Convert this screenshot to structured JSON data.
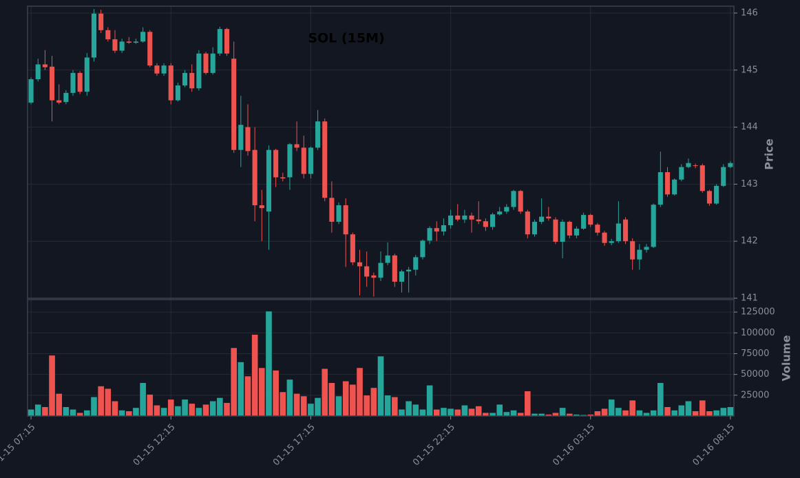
{
  "chart_data": [
    {
      "type": "candlestick",
      "title": "SOL (15M)",
      "y_label": "Price",
      "categories": [
        "01-15 07:15",
        null,
        null,
        null,
        null,
        null,
        null,
        null,
        null,
        null,
        null,
        null,
        null,
        null,
        null,
        null,
        null,
        null,
        null,
        null,
        "01-15 12:15",
        null,
        null,
        null,
        null,
        null,
        null,
        null,
        null,
        null,
        null,
        null,
        null,
        null,
        null,
        null,
        null,
        null,
        null,
        null,
        "01-15 17:15",
        null,
        null,
        null,
        null,
        null,
        null,
        null,
        null,
        null,
        null,
        null,
        null,
        null,
        null,
        null,
        null,
        null,
        null,
        null,
        "01-15 22:15",
        null,
        null,
        null,
        null,
        null,
        null,
        null,
        null,
        null,
        null,
        null,
        null,
        null,
        null,
        null,
        null,
        null,
        null,
        null,
        "01-16 03:15",
        null,
        null,
        null,
        null,
        null,
        null,
        null,
        null,
        null,
        null,
        null,
        null,
        null,
        null,
        null,
        null,
        null,
        null,
        null,
        "01-16 08:15"
      ],
      "open": [
        144.43,
        144.84,
        145.1,
        145.06,
        144.47,
        144.44,
        144.6,
        144.95,
        144.62,
        145.22,
        145.99,
        145.7,
        145.54,
        145.34,
        145.5,
        145.48,
        145.5,
        145.67,
        145.08,
        144.94,
        145.08,
        144.47,
        144.73,
        144.95,
        144.68,
        145.29,
        144.95,
        145.29,
        145.72,
        145.2,
        143.6,
        144.0,
        143.6,
        142.63,
        142.52,
        143.6,
        143.12,
        143.12,
        143.7,
        143.64,
        143.18,
        143.64,
        144.1,
        142.76,
        142.34,
        142.63,
        142.12,
        141.63,
        141.56,
        141.4,
        141.36,
        141.62,
        141.75,
        141.29,
        141.47,
        141.5,
        141.72,
        142.01,
        142.23,
        142.17,
        142.28,
        142.45,
        142.38,
        142.45,
        142.38,
        142.35,
        142.25,
        142.47,
        142.52,
        142.6,
        142.88,
        142.52,
        142.12,
        142.34,
        142.43,
        142.38,
        141.99,
        142.34,
        142.1,
        142.22,
        142.46,
        142.29,
        142.15,
        141.97,
        142.0,
        142.38,
        142.0,
        141.68,
        141.85,
        141.9,
        142.64,
        143.21,
        142.82,
        143.08,
        143.3,
        143.33,
        143.33,
        142.88,
        142.66,
        142.97,
        143.3
      ],
      "high": [
        144.87,
        145.2,
        145.35,
        145.25,
        144.75,
        144.65,
        145.0,
        144.98,
        145.3,
        146.07,
        146.06,
        145.75,
        145.7,
        145.55,
        145.58,
        145.55,
        145.75,
        145.7,
        145.12,
        145.12,
        145.12,
        144.78,
        145.0,
        145.1,
        145.35,
        145.32,
        145.4,
        145.76,
        145.74,
        145.5,
        144.55,
        144.4,
        144.0,
        142.9,
        143.68,
        143.62,
        143.2,
        143.72,
        144.1,
        143.85,
        143.66,
        144.3,
        144.15,
        143.05,
        142.68,
        142.75,
        142.15,
        141.85,
        141.82,
        141.45,
        141.82,
        141.98,
        141.78,
        141.5,
        141.55,
        141.76,
        142.03,
        142.26,
        142.35,
        142.4,
        142.55,
        142.65,
        142.55,
        142.5,
        142.7,
        142.4,
        142.5,
        142.6,
        142.65,
        142.9,
        142.9,
        142.55,
        142.38,
        142.75,
        142.6,
        142.42,
        142.38,
        142.36,
        142.26,
        142.5,
        142.48,
        142.32,
        142.18,
        142.04,
        142.7,
        142.42,
        142.05,
        141.95,
        141.95,
        142.66,
        143.57,
        143.3,
        143.1,
        143.35,
        143.45,
        143.36,
        143.36,
        142.9,
        143.0,
        143.35,
        143.4
      ],
      "low": [
        144.4,
        144.8,
        145.0,
        144.1,
        144.4,
        144.4,
        144.55,
        144.58,
        144.55,
        145.15,
        145.65,
        145.5,
        145.3,
        145.3,
        145.46,
        145.46,
        145.48,
        145.05,
        144.9,
        144.9,
        144.4,
        144.45,
        144.7,
        144.62,
        144.64,
        144.92,
        144.92,
        145.25,
        145.25,
        143.55,
        143.3,
        143.5,
        142.35,
        142.0,
        141.85,
        142.95,
        143.05,
        142.9,
        143.58,
        143.1,
        143.1,
        143.6,
        142.7,
        142.15,
        142.3,
        141.55,
        141.58,
        141.05,
        141.2,
        141.03,
        141.3,
        141.58,
        141.2,
        141.1,
        141.1,
        141.4,
        141.68,
        141.95,
        142.0,
        142.1,
        142.22,
        142.35,
        142.32,
        142.15,
        142.3,
        142.18,
        142.2,
        142.45,
        142.48,
        142.55,
        142.48,
        142.05,
        142.08,
        142.3,
        142.36,
        141.95,
        141.7,
        142.05,
        142.05,
        142.2,
        142.25,
        142.1,
        141.92,
        141.93,
        141.97,
        141.95,
        141.5,
        141.5,
        141.8,
        141.88,
        142.6,
        142.78,
        142.8,
        143.05,
        143.28,
        143.28,
        142.85,
        142.62,
        142.64,
        142.95,
        143.28
      ],
      "close": [
        144.84,
        145.1,
        145.05,
        144.47,
        144.43,
        144.6,
        144.95,
        144.62,
        145.22,
        145.99,
        145.7,
        145.54,
        145.34,
        145.5,
        145.48,
        145.5,
        145.67,
        145.08,
        144.94,
        145.08,
        144.47,
        144.73,
        144.95,
        144.68,
        145.29,
        144.95,
        145.29,
        145.72,
        145.29,
        143.6,
        144.04,
        143.58,
        142.63,
        142.58,
        143.6,
        143.12,
        143.1,
        143.7,
        143.64,
        143.18,
        143.64,
        144.1,
        142.76,
        142.34,
        142.63,
        142.12,
        141.63,
        141.56,
        141.38,
        141.36,
        141.62,
        141.75,
        141.29,
        141.47,
        141.5,
        141.72,
        142.01,
        142.23,
        142.17,
        142.28,
        142.45,
        142.38,
        142.45,
        142.38,
        142.35,
        142.25,
        142.47,
        142.52,
        142.6,
        142.88,
        142.52,
        142.12,
        142.34,
        142.43,
        142.4,
        141.99,
        142.34,
        142.1,
        142.22,
        142.46,
        142.29,
        142.15,
        141.97,
        142.0,
        142.31,
        142.0,
        141.68,
        141.85,
        141.9,
        142.64,
        143.21,
        142.82,
        143.08,
        143.3,
        143.37,
        143.32,
        142.88,
        142.66,
        142.97,
        143.3,
        143.37
      ],
      "up_color": "#26a69a",
      "down_color": "#ef5350",
      "ylim": [
        141,
        146.12
      ],
      "yticks": [
        141,
        142,
        143,
        144,
        145,
        146
      ],
      "grid": true
    },
    {
      "type": "bar",
      "y_label": "Volume",
      "values": [
        8000,
        14000,
        11000,
        73000,
        27000,
        11000,
        8000,
        4000,
        7000,
        23000,
        36000,
        33000,
        18000,
        7000,
        6000,
        10000,
        40000,
        26000,
        13000,
        10000,
        20000,
        12000,
        20000,
        15000,
        10000,
        14000,
        18000,
        22000,
        16000,
        82000,
        65000,
        48000,
        98000,
        58000,
        126000,
        55000,
        29000,
        44000,
        27000,
        24000,
        15000,
        22000,
        57000,
        40000,
        24000,
        42000,
        38000,
        58000,
        25000,
        34000,
        72000,
        25000,
        23000,
        8000,
        18000,
        14000,
        8000,
        37000,
        8000,
        10000,
        9000,
        8000,
        13000,
        9000,
        12000,
        4000,
        4000,
        14000,
        5000,
        7000,
        4000,
        30000,
        3000,
        3000,
        2000,
        4000,
        10000,
        3000,
        2000,
        1500,
        2000,
        6000,
        9000,
        20000,
        10000,
        7000,
        19000,
        7000,
        4000,
        7000,
        40000,
        11000,
        7000,
        13000,
        18000,
        6000,
        19000,
        6000,
        7000,
        10000,
        11000
      ],
      "ylim": [
        0,
        140000
      ],
      "yticks": [
        25000,
        50000,
        75000,
        100000,
        125000
      ],
      "grid": true
    }
  ]
}
